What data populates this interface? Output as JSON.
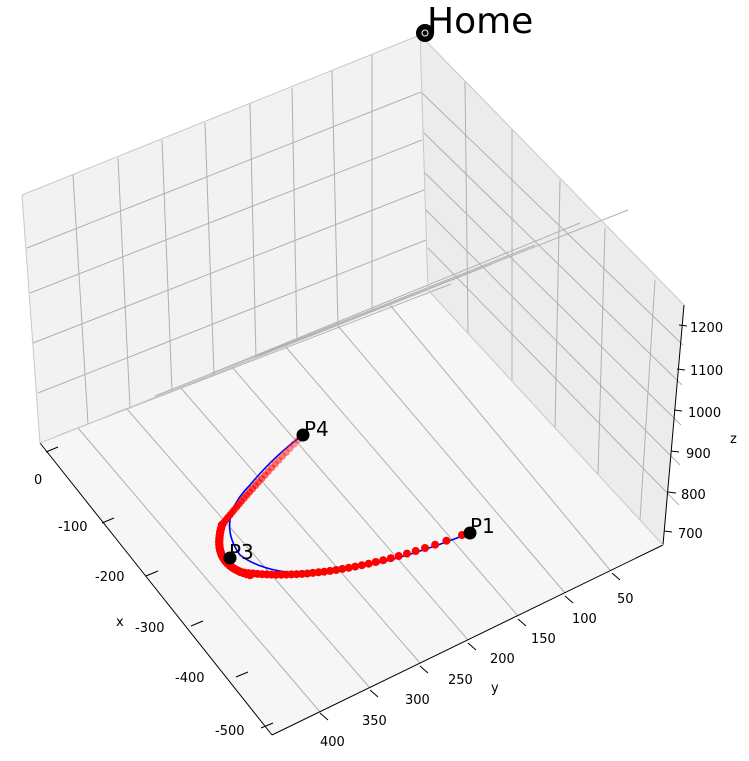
{
  "chart_data": {
    "type": "line3d",
    "colors": {
      "planned_path": "#0000ff",
      "trajectory_points": "#ff0000",
      "waypoints": "#000000",
      "pane_left": "#f2f2f2",
      "pane_back": "#ececec",
      "pane_floor": "#f6f6f6",
      "grid": "#b0b0b0"
    },
    "axes": {
      "x": {
        "label": "x",
        "ticks": [
          0,
          -100,
          -200,
          -300,
          -400,
          -500
        ]
      },
      "y": {
        "label": "y",
        "ticks": [
          50,
          100,
          150,
          200,
          250,
          300,
          350,
          400
        ]
      },
      "z": {
        "label": "z",
        "ticks": [
          700,
          800,
          900,
          1000,
          1100,
          1200
        ]
      }
    },
    "waypoints": [
      {
        "name": "Home",
        "x": -10,
        "y": 30,
        "z": 1210
      },
      {
        "name": "P1",
        "x": -250,
        "y": 170,
        "z": 700
      },
      {
        "name": "P3",
        "x": -300,
        "y": 360,
        "z": 700
      },
      {
        "name": "P4",
        "x": -160,
        "y": 380,
        "z": 800
      }
    ]
  }
}
